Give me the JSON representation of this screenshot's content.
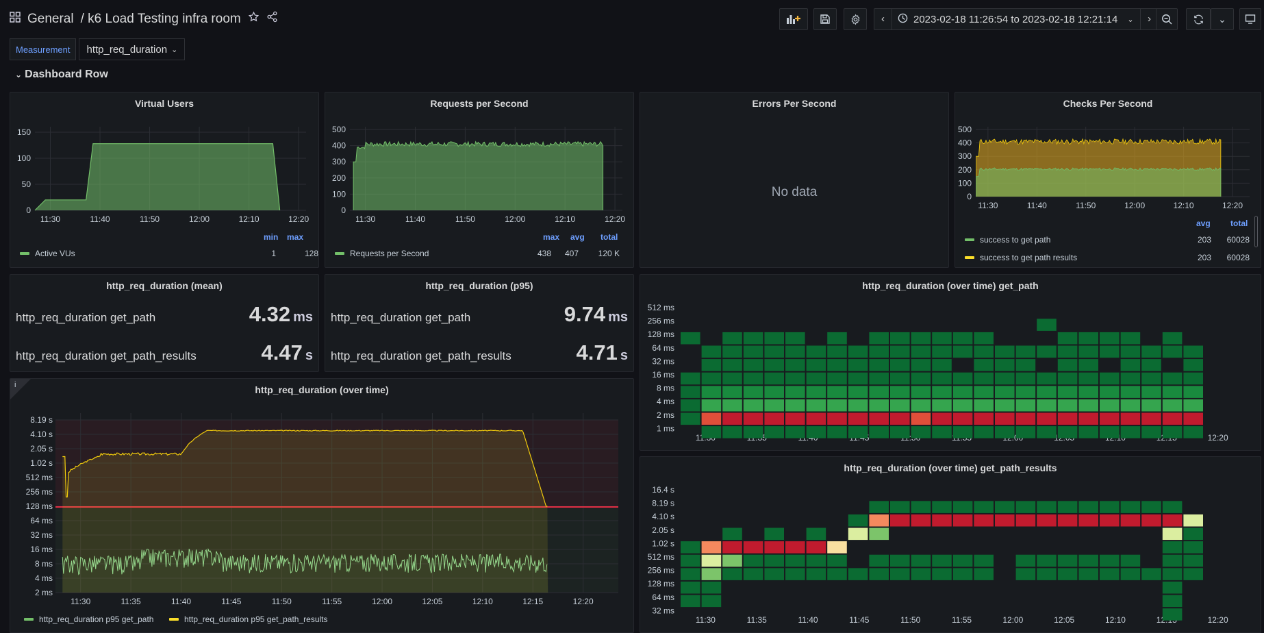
{
  "header": {
    "folder": "General",
    "title": "/ k6 Load Testing infra room",
    "time_range": "2023-02-18 11:26:54 to 2023-02-18 12:21:14"
  },
  "variables": {
    "label": "Measurement",
    "value": "http_req_duration"
  },
  "row": {
    "title": "Dashboard Row"
  },
  "colors": {
    "green": "#73bf69",
    "yellow": "#fade2a",
    "blue": "#6e9fff",
    "red": "#e02f44"
  },
  "time_ticks": [
    "11:30",
    "11:40",
    "11:50",
    "12:00",
    "12:10",
    "12:20"
  ],
  "time_ticks_5m": [
    "11:30",
    "11:35",
    "11:40",
    "11:45",
    "11:50",
    "11:55",
    "12:00",
    "12:05",
    "12:10",
    "12:15",
    "12:20"
  ],
  "panels": {
    "vus": {
      "title": "Virtual Users",
      "y_ticks": [
        "150",
        "100",
        "50",
        "0"
      ],
      "legend_headers": [
        "min",
        "max"
      ],
      "series": {
        "name": "Active VUs",
        "min": "1",
        "max": "128"
      }
    },
    "rps": {
      "title": "Requests per Second",
      "y_ticks": [
        "500",
        "400",
        "300",
        "200",
        "100",
        "0"
      ],
      "legend_headers": [
        "max",
        "avg",
        "total"
      ],
      "series": {
        "name": "Requests per Second",
        "max": "438",
        "avg": "407",
        "total": "120 K"
      }
    },
    "eps": {
      "title": "Errors Per Second",
      "no_data": "No data"
    },
    "cps": {
      "title": "Checks Per Second",
      "y_ticks": [
        "500",
        "400",
        "300",
        "200",
        "100",
        "0"
      ],
      "legend_headers": [
        "avg",
        "total"
      ],
      "series": [
        {
          "name": "success to get path",
          "avg": "203",
          "total": "60028"
        },
        {
          "name": "success to get path results",
          "avg": "203",
          "total": "60028"
        }
      ]
    },
    "mean": {
      "title": "http_req_duration (mean)",
      "rows": [
        {
          "name": "http_req_duration get_path",
          "value": "4.32",
          "unit": "ms"
        },
        {
          "name": "http_req_duration get_path_results",
          "value": "4.47",
          "unit": "s"
        }
      ]
    },
    "p95": {
      "title": "http_req_duration (p95)",
      "rows": [
        {
          "name": "http_req_duration get_path",
          "value": "9.74",
          "unit": "ms"
        },
        {
          "name": "http_req_duration get_path_results",
          "value": "4.71",
          "unit": "s"
        }
      ]
    },
    "overtime": {
      "title": "http_req_duration (over time)",
      "info": "i",
      "y_ticks": [
        "8.19 s",
        "4.10 s",
        "2.05 s",
        "1.02 s",
        "512 ms",
        "256 ms",
        "128 ms",
        "64 ms",
        "32 ms",
        "16 ms",
        "8 ms",
        "4 ms",
        "2 ms"
      ],
      "series": [
        {
          "name": "http_req_duration p95 get_path"
        },
        {
          "name": "http_req_duration p95 get_path_results"
        }
      ]
    },
    "hm1": {
      "title": "http_req_duration (over time) get_path",
      "y_ticks": [
        "512 ms",
        "256 ms",
        "128 ms",
        "64 ms",
        "32 ms",
        "16 ms",
        "8 ms",
        "4 ms",
        "2 ms",
        "1 ms"
      ]
    },
    "hm2": {
      "title": "http_req_duration (over time) get_path_results",
      "y_ticks": [
        "16.4 s",
        "8.19 s",
        "4.10 s",
        "2.05 s",
        "1.02 s",
        "512 ms",
        "256 ms",
        "128 ms",
        "64 ms",
        "32 ms"
      ]
    }
  }
}
